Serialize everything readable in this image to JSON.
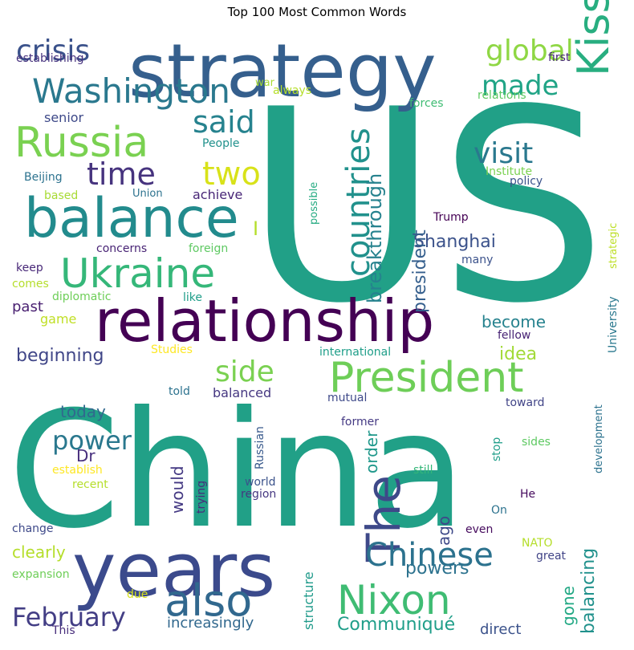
{
  "chart_data": {
    "type": "wordcloud",
    "title": "Top 100 Most Common Words",
    "words": [
      {
        "text": "US",
        "color": "#21a087"
      },
      {
        "text": "China",
        "color": "#21a087"
      },
      {
        "text": "strategy",
        "color": "#355f8d"
      },
      {
        "text": "relationship",
        "color": "#440154"
      },
      {
        "text": "years",
        "color": "#3b4a8c"
      },
      {
        "text": "balance",
        "color": "#228b8d"
      },
      {
        "text": "Kissinger",
        "color": "#28ae80"
      },
      {
        "text": "President",
        "color": "#6ece58"
      },
      {
        "text": "Russia",
        "color": "#7ad151"
      },
      {
        "text": "Ukraine",
        "color": "#35b779"
      },
      {
        "text": "Washington",
        "color": "#2a788e"
      },
      {
        "text": "Nixon",
        "color": "#3fbc73"
      },
      {
        "text": "also",
        "color": "#31688e"
      },
      {
        "text": "The",
        "color": "#3e4989"
      },
      {
        "text": "countries",
        "color": "#21918c"
      },
      {
        "text": "Chinese",
        "color": "#2c728e"
      },
      {
        "text": "global",
        "color": "#8fd744"
      },
      {
        "text": "crisis",
        "color": "#3b528b"
      },
      {
        "text": "said",
        "color": "#26828e"
      },
      {
        "text": "two",
        "color": "#d8e219"
      },
      {
        "text": "time",
        "color": "#46337e"
      },
      {
        "text": "visit",
        "color": "#2a788e"
      },
      {
        "text": "made",
        "color": "#20a486"
      },
      {
        "text": "side",
        "color": "#7ad151"
      },
      {
        "text": "power",
        "color": "#2a788e"
      },
      {
        "text": "February",
        "color": "#433e85"
      },
      {
        "text": "breakthrough",
        "color": "#26828e"
      },
      {
        "text": "Shanghai",
        "color": "#3b528b"
      },
      {
        "text": "beginning",
        "color": "#404688"
      },
      {
        "text": "president",
        "color": "#355f8d"
      },
      {
        "text": "Communiqué",
        "color": "#1f9e89"
      },
      {
        "text": "balancing",
        "color": "#21918c"
      },
      {
        "text": "powers",
        "color": "#2c728e"
      },
      {
        "text": "become",
        "color": "#26828e"
      },
      {
        "text": "idea",
        "color": "#a2da37"
      },
      {
        "text": "clearly",
        "color": "#b5de2b"
      },
      {
        "text": "gone",
        "color": "#22a884"
      },
      {
        "text": "order",
        "color": "#1f988b"
      },
      {
        "text": "would",
        "color": "#443983"
      },
      {
        "text": "today",
        "color": "#31688e"
      },
      {
        "text": "ago",
        "color": "#3e4989"
      },
      {
        "text": "Dr",
        "color": "#472f7d"
      },
      {
        "text": "past",
        "color": "#481f70"
      },
      {
        "text": "game",
        "color": "#c0df25"
      },
      {
        "text": "increasingly",
        "color": "#31688e"
      },
      {
        "text": "direct",
        "color": "#3b528b"
      },
      {
        "text": "structure",
        "color": "#1f9a8a"
      },
      {
        "text": "balanced",
        "color": "#453781"
      },
      {
        "text": "achieve",
        "color": "#482677"
      },
      {
        "text": "senior",
        "color": "#3e4989"
      },
      {
        "text": "Beijing",
        "color": "#2c728e"
      },
      {
        "text": "establishing",
        "color": "#46327e"
      },
      {
        "text": "first",
        "color": "#482878"
      },
      {
        "text": "war",
        "color": "#a8db34"
      },
      {
        "text": "always",
        "color": "#b5de2b"
      },
      {
        "text": "relations",
        "color": "#5ec962"
      },
      {
        "text": "forces",
        "color": "#3fbc73"
      },
      {
        "text": "People",
        "color": "#21918c"
      },
      {
        "text": "Institute",
        "color": "#7ad151"
      },
      {
        "text": "policy",
        "color": "#3b528b"
      },
      {
        "text": "based",
        "color": "#a8db34"
      },
      {
        "text": "Union",
        "color": "#2c728e"
      },
      {
        "text": "possible",
        "color": "#25ab82"
      },
      {
        "text": "strategic",
        "color": "#bddf26"
      },
      {
        "text": "Trump",
        "color": "#440154"
      },
      {
        "text": "I",
        "color": "#b5de2b"
      },
      {
        "text": "concerns",
        "color": "#482475"
      },
      {
        "text": "foreign",
        "color": "#5ec962"
      },
      {
        "text": "keep",
        "color": "#482878"
      },
      {
        "text": "many",
        "color": "#3b528b"
      },
      {
        "text": "comes",
        "color": "#b5de2b"
      },
      {
        "text": "diplomatic",
        "color": "#6ece58"
      },
      {
        "text": "like",
        "color": "#1f9e89"
      },
      {
        "text": "University",
        "color": "#2a788e"
      },
      {
        "text": "fellow",
        "color": "#482475"
      },
      {
        "text": "Studies",
        "color": "#fde725"
      },
      {
        "text": "international",
        "color": "#1f9e89"
      },
      {
        "text": "told",
        "color": "#2c728e"
      },
      {
        "text": "mutual",
        "color": "#3e4989"
      },
      {
        "text": "toward",
        "color": "#414487"
      },
      {
        "text": "development",
        "color": "#2c728e"
      },
      {
        "text": "former",
        "color": "#443983"
      },
      {
        "text": "Russian",
        "color": "#38598c"
      },
      {
        "text": "establish",
        "color": "#fde725"
      },
      {
        "text": "recent",
        "color": "#b5de2b"
      },
      {
        "text": "trying",
        "color": "#472d7b"
      },
      {
        "text": "world",
        "color": "#3b528b"
      },
      {
        "text": "region",
        "color": "#453781"
      },
      {
        "text": "still",
        "color": "#35b779"
      },
      {
        "text": "stop",
        "color": "#1f9e89"
      },
      {
        "text": "sides",
        "color": "#5ec962"
      },
      {
        "text": "He",
        "color": "#460b5e"
      },
      {
        "text": "On",
        "color": "#2c728e"
      },
      {
        "text": "change",
        "color": "#3e4989"
      },
      {
        "text": "even",
        "color": "#460b5e"
      },
      {
        "text": "NATO",
        "color": "#b5de2b"
      },
      {
        "text": "great",
        "color": "#414487"
      },
      {
        "text": "expansion",
        "color": "#6ece58"
      },
      {
        "text": "due",
        "color": "#d8e219"
      },
      {
        "text": "This",
        "color": "#472d7b"
      }
    ]
  }
}
